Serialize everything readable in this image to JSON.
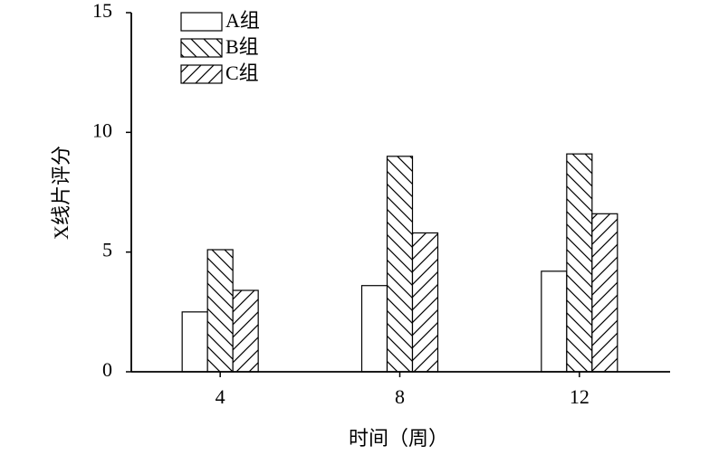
{
  "chart_data": {
    "type": "bar",
    "x_label": "时间（周）",
    "y_label": "X线片评分",
    "categories": [
      "4",
      "8",
      "12"
    ],
    "series": [
      {
        "name": "A组",
        "color": "#000000",
        "hatch": "none",
        "values": [
          2.5,
          3.6,
          4.2
        ]
      },
      {
        "name": "B组",
        "color": "#000000",
        "hatch": "backslash",
        "values": [
          5.1,
          9.0,
          9.1
        ]
      },
      {
        "name": "C组",
        "color": "#000000",
        "hatch": "slash",
        "values": [
          3.4,
          5.8,
          6.6
        ]
      }
    ],
    "ylim": [
      0,
      15
    ],
    "yticks": [
      0,
      5,
      10,
      15
    ],
    "grid": false,
    "legend": "top-left"
  }
}
